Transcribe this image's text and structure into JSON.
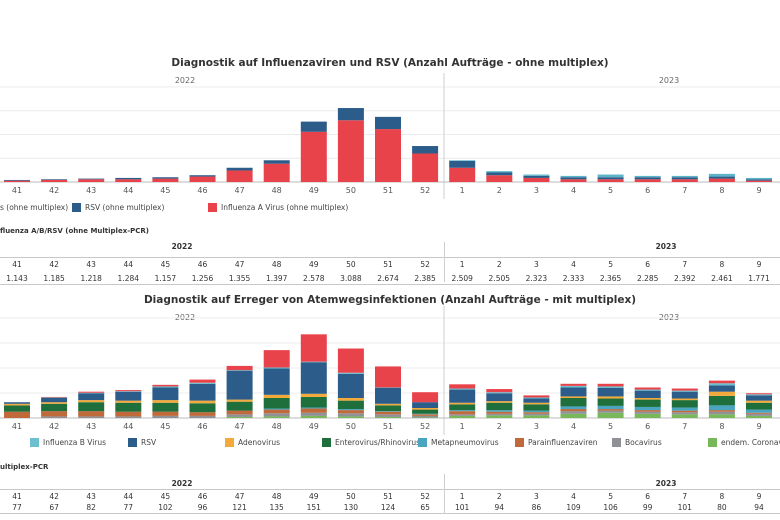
{
  "chart1": {
    "title": "Diagnostik auf Influenzaviren und RSV (Anzahl Aufträge - ohne multiplex)",
    "year_left": "2022",
    "year_right": "2023"
  },
  "chart2": {
    "title": "Diagnostik auf Erreger von Atemwegsinfektionen (Anzahl Aufträge - mit multiplex)",
    "year_left": "2022",
    "year_right": "2023"
  },
  "legend1": [
    {
      "label": "s (ohne multiplex)",
      "color": "#5db3c8"
    },
    {
      "label": "RSV (ohne multiplex)",
      "color": "#2b5c8a"
    },
    {
      "label": "Influenza A Virus (ohne multiplex)",
      "color": "#e8434a"
    }
  ],
  "legend2": [
    {
      "label": "Influenza B Virus",
      "color": "#6bbfcf"
    },
    {
      "label": "RSV",
      "color": "#2b5c8a"
    },
    {
      "label": "Adenovirus",
      "color": "#f4a93b"
    },
    {
      "label": "Enterovirus/Rhinovirus",
      "color": "#1e6f3c"
    },
    {
      "label": "Metapneumovirus",
      "color": "#4aa6c0"
    },
    {
      "label": "Parainfluenzaviren",
      "color": "#c0693a"
    },
    {
      "label": "Bocavirus",
      "color": "#8f9196"
    },
    {
      "label": "endem. Coronaviren",
      "color": "#78b85a"
    }
  ],
  "table1": {
    "title": "fluenza A/B/RSV (ohne Multiplex-PCR)",
    "year_left": "2022",
    "year_right": "2023",
    "weeks": [
      "41",
      "42",
      "43",
      "44",
      "45",
      "46",
      "47",
      "48",
      "49",
      "50",
      "51",
      "52",
      "1",
      "2",
      "3",
      "4",
      "5",
      "6",
      "7",
      "8",
      "9"
    ],
    "values": [
      "1.143",
      "1.185",
      "1.218",
      "1.284",
      "1.157",
      "1.256",
      "1.355",
      "1.397",
      "2.578",
      "3.088",
      "2.674",
      "2.385",
      "2.509",
      "2.505",
      "2.323",
      "2.333",
      "2.365",
      "2.285",
      "2.392",
      "2.461",
      "1.771"
    ]
  },
  "table2": {
    "title": "ultiplex-PCR",
    "year_left": "2022",
    "year_right": "2023",
    "weeks": [
      "41",
      "42",
      "43",
      "44",
      "45",
      "46",
      "47",
      "48",
      "49",
      "50",
      "51",
      "52",
      "1",
      "2",
      "3",
      "4",
      "5",
      "6",
      "7",
      "8",
      "9"
    ],
    "values": [
      "77",
      "67",
      "82",
      "77",
      "102",
      "96",
      "121",
      "135",
      "151",
      "130",
      "124",
      "65",
      "101",
      "94",
      "86",
      "109",
      "106",
      "99",
      "101",
      "80",
      "94"
    ]
  },
  "chart_data": [
    {
      "type": "bar",
      "stacked": true,
      "title": "Diagnostik auf Influenzaviren und RSV (Anzahl Aufträge - ohne multiplex)",
      "categories": [
        "41",
        "42",
        "43",
        "44",
        "45",
        "46",
        "47",
        "48",
        "49",
        "50",
        "51",
        "52",
        "1",
        "2",
        "3",
        "4",
        "5",
        "6",
        "7",
        "8",
        "9"
      ],
      "ylim": [
        0,
        140
      ],
      "series": [
        {
          "name": "Influenza A Virus (ohne multiplex)",
          "color": "#e8434a",
          "values": [
            2,
            3,
            4,
            4,
            5,
            8,
            17,
            27,
            74,
            91,
            78,
            42,
            21,
            10,
            6,
            4,
            4,
            4,
            4,
            5,
            2
          ]
        },
        {
          "name": "RSV (ohne multiplex)",
          "color": "#2b5c8a",
          "values": [
            1,
            1,
            1,
            2,
            2,
            2,
            4,
            5,
            15,
            18,
            18,
            11,
            10,
            4,
            3,
            3,
            3,
            3,
            3,
            3,
            2
          ]
        },
        {
          "name": "",
          "color": "#5db3c8",
          "values": [
            0,
            0,
            0,
            0,
            0,
            0,
            0,
            0,
            0,
            0,
            0,
            0,
            1,
            2,
            2,
            2,
            4,
            2,
            2,
            4,
            2
          ]
        }
      ]
    },
    {
      "type": "bar",
      "stacked": true,
      "title": "Diagnostik auf Erreger von Atemwegsinfektionen (Anzahl Aufträge - mit multiplex)",
      "categories": [
        "41",
        "42",
        "43",
        "44",
        "45",
        "46",
        "47",
        "48",
        "49",
        "50",
        "51",
        "52",
        "1",
        "2",
        "3",
        "4",
        "5",
        "6",
        "7",
        "8",
        "9"
      ],
      "ylim": [
        0,
        190
      ],
      "series": [
        {
          "name": "endem. Coronaviren",
          "color": "#78b85a",
          "values": [
            0,
            0,
            0,
            0,
            0,
            0,
            2,
            3,
            4,
            3,
            2,
            1,
            4,
            5,
            5,
            8,
            10,
            8,
            7,
            7,
            4
          ]
        },
        {
          "name": "Bocavirus",
          "color": "#8f9196",
          "values": [
            0,
            3,
            3,
            3,
            4,
            4,
            5,
            6,
            6,
            6,
            5,
            3,
            3,
            3,
            3,
            5,
            4,
            4,
            4,
            5,
            4
          ]
        },
        {
          "name": "Parainfluenzaviren",
          "color": "#c0693a",
          "values": [
            12,
            10,
            10,
            9,
            8,
            7,
            7,
            7,
            8,
            6,
            5,
            3,
            6,
            4,
            3,
            4,
            3,
            3,
            3,
            3,
            2
          ]
        },
        {
          "name": "Metapneumovirus",
          "color": "#4aa6c0",
          "values": [
            0,
            0,
            0,
            0,
            0,
            0,
            0,
            2,
            2,
            2,
            1,
            1,
            2,
            3,
            3,
            5,
            6,
            6,
            6,
            9,
            6
          ]
        },
        {
          "name": "Enterovirus/Rhinovirus",
          "color": "#1e6f3c",
          "values": [
            12,
            14,
            17,
            17,
            17,
            17,
            17,
            20,
            20,
            16,
            11,
            8,
            11,
            14,
            12,
            16,
            14,
            14,
            14,
            18,
            13
          ]
        },
        {
          "name": "Adenovirus",
          "color": "#f4a93b",
          "values": [
            3,
            3,
            4,
            4,
            5,
            5,
            4,
            6,
            6,
            5,
            3,
            3,
            3,
            3,
            3,
            3,
            4,
            3,
            3,
            8,
            4
          ]
        },
        {
          "name": "RSV",
          "color": "#2b5c8a",
          "values": [
            3,
            8,
            13,
            17,
            24,
            32,
            55,
            50,
            60,
            46,
            30,
            11,
            25,
            15,
            8,
            17,
            16,
            14,
            13,
            12,
            10
          ]
        },
        {
          "name": "Influenza B Virus",
          "color": "#6bbfcf",
          "values": [
            0,
            1,
            1,
            1,
            2,
            2,
            1,
            2,
            1,
            2,
            1,
            0,
            2,
            2,
            2,
            3,
            3,
            2,
            2,
            4,
            2
          ]
        },
        {
          "name": "Influenza A Virus",
          "color": "#e8434a",
          "values": [
            0,
            1,
            2,
            2,
            3,
            6,
            8,
            33,
            52,
            46,
            40,
            19,
            8,
            6,
            4,
            4,
            5,
            4,
            4,
            5,
            2
          ]
        }
      ]
    }
  ]
}
